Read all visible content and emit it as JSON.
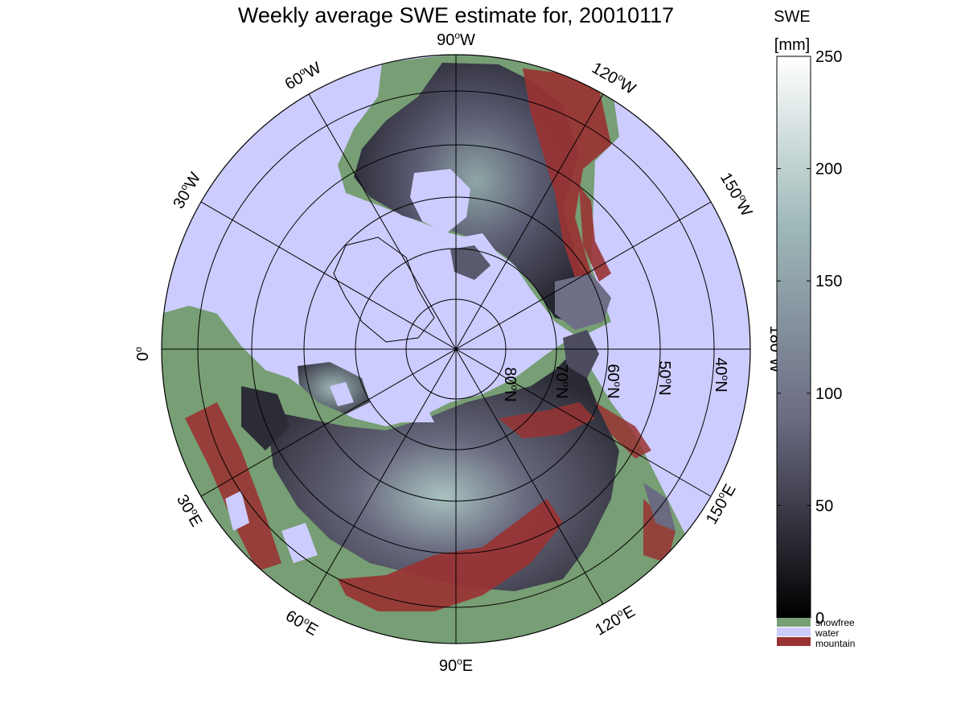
{
  "title": "Weekly average SWE estimate for, 20010117",
  "colorbar": {
    "label_line1": "SWE",
    "label_line2": "[mm]",
    "min": 0,
    "max": 250,
    "ticks": [
      {
        "value": 0,
        "label": "0"
      },
      {
        "value": 50,
        "label": "50"
      },
      {
        "value": 100,
        "label": "100"
      },
      {
        "value": 150,
        "label": "150"
      },
      {
        "value": 200,
        "label": "200"
      },
      {
        "value": 250,
        "label": "250"
      }
    ],
    "colors": {
      "low": "#000000",
      "mid": "#6a6a82",
      "high": "#ffffff"
    }
  },
  "legend": [
    {
      "key": "snowfree",
      "label": "snowfree",
      "color": "#779e74"
    },
    {
      "key": "water",
      "label": "water",
      "color": "#ccccff"
    },
    {
      "key": "mountain",
      "label": "mountain",
      "color": "#993333"
    }
  ],
  "map": {
    "projection": "north-polar stereographic",
    "water_color": "#ccccff",
    "longitude_labels": [
      {
        "key": "lon_90W",
        "deg": "90",
        "hemi": "W"
      },
      {
        "key": "lon_120W",
        "deg": "120",
        "hemi": "W"
      },
      {
        "key": "lon_150W",
        "deg": "150",
        "hemi": "W"
      },
      {
        "key": "lon_180W",
        "deg": "180",
        "hemi": "W"
      },
      {
        "key": "lon_150E",
        "deg": "150",
        "hemi": "E"
      },
      {
        "key": "lon_120E",
        "deg": "120",
        "hemi": "E"
      },
      {
        "key": "lon_90E",
        "deg": "90",
        "hemi": "E"
      },
      {
        "key": "lon_60E",
        "deg": "60",
        "hemi": "E"
      },
      {
        "key": "lon_30E",
        "deg": "30",
        "hemi": "E"
      },
      {
        "key": "lon_0",
        "deg": "0",
        "hemi": ""
      },
      {
        "key": "lon_30W",
        "deg": "30",
        "hemi": "W"
      },
      {
        "key": "lon_60W",
        "deg": "60",
        "hemi": "W"
      }
    ],
    "latitude_labels": [
      {
        "key": "lat_80N",
        "deg": "80",
        "hemi": "N"
      },
      {
        "key": "lat_70N",
        "deg": "70",
        "hemi": "N"
      },
      {
        "key": "lat_60N",
        "deg": "60",
        "hemi": "N"
      },
      {
        "key": "lat_50N",
        "deg": "50",
        "hemi": "N"
      },
      {
        "key": "lat_40N",
        "deg": "40",
        "hemi": "N"
      }
    ],
    "degree_symbol": "o"
  }
}
